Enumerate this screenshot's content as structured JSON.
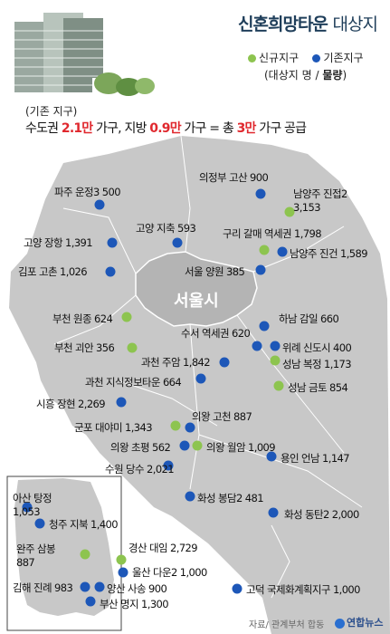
{
  "title": {
    "main": "신혼희망타운",
    "sub": "대상지"
  },
  "legend": {
    "new": "신규지구",
    "existing": "기존지구",
    "format": "(대상지 명 / 물량)",
    "format_a": "(대상지 명 / ",
    "format_b": "물량",
    "format_c": ")"
  },
  "summary": {
    "label": "(기존 지구)",
    "p1": "수도권 ",
    "v1": "2.1만",
    "p2": " 가구, 지방 ",
    "v2": "0.9만",
    "p3": " 가구 = 총 ",
    "v3": "3만",
    "p4": " 가구 공급"
  },
  "seoul_label": "서울시",
  "colors": {
    "new_site": "#8dc44f",
    "existing_site": "#1d57b8",
    "map_fill": "#c8c8c8",
    "seoul_fill": "#b4b4b4",
    "highlight": "#e0282e"
  },
  "sites": [
    {
      "name": "의정부 고산",
      "units": "900",
      "type": "existing"
    },
    {
      "name": "파주 운정3",
      "units": "500",
      "type": "existing"
    },
    {
      "name": "남양주 진접2",
      "units": "3,153",
      "type": "new"
    },
    {
      "name": "고양 지축",
      "units": "593",
      "type": "existing"
    },
    {
      "name": "구리 갈매 역세권",
      "units": "1,798",
      "type": "new"
    },
    {
      "name": "고양 장항",
      "units": "1,391",
      "type": "existing"
    },
    {
      "name": "남양주 진건",
      "units": "1,589",
      "type": "existing"
    },
    {
      "name": "김포 고촌",
      "units": "1,026",
      "type": "existing"
    },
    {
      "name": "서울 양원",
      "units": "385",
      "type": "existing"
    },
    {
      "name": "부천 원종",
      "units": "624",
      "type": "new"
    },
    {
      "name": "하남 감일",
      "units": "660",
      "type": "existing"
    },
    {
      "name": "수서 역세권",
      "units": "620",
      "type": "existing"
    },
    {
      "name": "부천 괴안",
      "units": "356",
      "type": "new"
    },
    {
      "name": "위례 신도시",
      "units": "400",
      "type": "existing"
    },
    {
      "name": "과천 주암",
      "units": "1,842",
      "type": "existing"
    },
    {
      "name": "성남 복정",
      "units": "1,173",
      "type": "new"
    },
    {
      "name": "과천 지식정보타운",
      "units": "664",
      "type": "existing"
    },
    {
      "name": "성남 금토",
      "units": "854",
      "type": "new"
    },
    {
      "name": "시흥 장현",
      "units": "2,269",
      "type": "existing"
    },
    {
      "name": "의왕 고천",
      "units": "887",
      "type": "existing"
    },
    {
      "name": "군포 대야미",
      "units": "1,343",
      "type": "new"
    },
    {
      "name": "의왕 초평",
      "units": "562",
      "type": "existing"
    },
    {
      "name": "의왕 월암",
      "units": "1,009",
      "type": "new"
    },
    {
      "name": "용인 언남",
      "units": "1,147",
      "type": "existing"
    },
    {
      "name": "수원 당수",
      "units": "2,021",
      "type": "existing"
    },
    {
      "name": "화성 봉담2",
      "units": "481",
      "type": "existing"
    },
    {
      "name": "화성 동탄2",
      "units": "2,000",
      "type": "existing"
    },
    {
      "name": "고덕 국제화계획지구",
      "units": "1,000",
      "type": "existing"
    },
    {
      "name": "아산 탕정",
      "units": "1,053",
      "type": "existing"
    },
    {
      "name": "청주 지북",
      "units": "1,400",
      "type": "existing"
    },
    {
      "name": "완주 삼봉",
      "units": "887",
      "type": "new"
    },
    {
      "name": "경산 대임",
      "units": "2,729",
      "type": "new"
    },
    {
      "name": "울산 다운2",
      "units": "1,000",
      "type": "existing"
    },
    {
      "name": "김해 진례",
      "units": "983",
      "type": "existing"
    },
    {
      "name": "양산 사송",
      "units": "900",
      "type": "existing"
    },
    {
      "name": "부산 명지",
      "units": "1,300",
      "type": "existing"
    }
  ],
  "source": "자료/ 관계부처 합동",
  "agency": "연합뉴스"
}
